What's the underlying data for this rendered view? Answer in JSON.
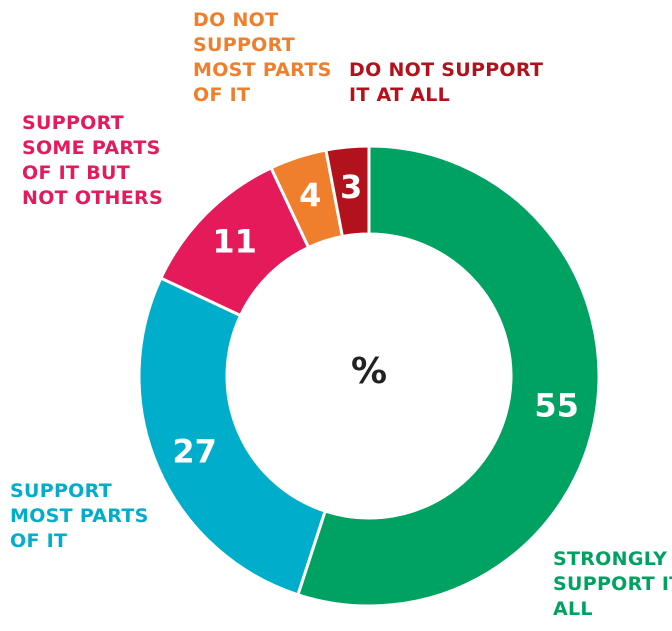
{
  "chart_data": {
    "type": "pie",
    "variant": "donut",
    "center_label": "%",
    "start_angle_deg": 0,
    "direction": "clockwise",
    "slices": [
      {
        "label": "Strongly support it all",
        "value": 55,
        "color": "#00A262",
        "label_lines": [
          "Strongly",
          "support it",
          "all"
        ]
      },
      {
        "label": "Support most parts of it",
        "value": 27,
        "color": "#00AECB",
        "label_lines": [
          "Support",
          "most parts",
          "of it"
        ]
      },
      {
        "label": "Support some parts of it but not others",
        "value": 11,
        "color": "#E41A5B",
        "label_lines": [
          "Support",
          "some parts",
          "of it but",
          "not others"
        ]
      },
      {
        "label": "Do not support most parts of it",
        "value": 4,
        "color": "#EF7F2C",
        "label_lines": [
          "Do not",
          "support",
          "most parts",
          "of it"
        ]
      },
      {
        "label": "Do not support it at all",
        "value": 3,
        "color": "#B2121C",
        "label_lines": [
          "Do not support",
          "it at all"
        ]
      }
    ]
  }
}
